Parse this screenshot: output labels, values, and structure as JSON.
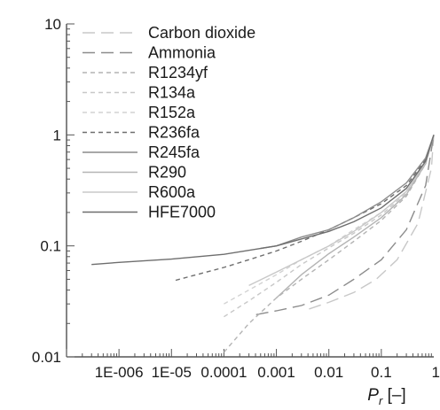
{
  "chart_data": {
    "type": "line",
    "title": "",
    "xlabel": "P",
    "xlabel_sub": "r",
    "xlabel_unit": " [–]",
    "ylabel": "",
    "xscale": "log",
    "yscale": "log",
    "xlim": [
      1e-07,
      1
    ],
    "ylim": [
      0.01,
      10
    ],
    "x_ticks": [
      {
        "value": 1e-06,
        "label": "1E-006"
      },
      {
        "value": 1e-05,
        "label": "1E-05"
      },
      {
        "value": 0.0001,
        "label": "0.0001"
      },
      {
        "value": 0.001,
        "label": "0.001"
      },
      {
        "value": 0.01,
        "label": "0.01"
      },
      {
        "value": 0.1,
        "label": "0.1"
      },
      {
        "value": 1,
        "label": "1"
      }
    ],
    "y_ticks": [
      {
        "value": 0.01,
        "label": "0.01"
      },
      {
        "value": 0.1,
        "label": "0.1"
      },
      {
        "value": 1,
        "label": "1"
      },
      {
        "value": 10,
        "label": "10"
      }
    ],
    "grid": false,
    "legend_position": "top-left",
    "series": [
      {
        "name": "Carbon dioxide",
        "color": "#c8c8c8",
        "dash": "14,7",
        "points": [
          [
            0.0042,
            0.027
          ],
          [
            0.01,
            0.031
          ],
          [
            0.03,
            0.038
          ],
          [
            0.08,
            0.05
          ],
          [
            0.2,
            0.075
          ],
          [
            0.5,
            0.16
          ],
          [
            0.9,
            0.5
          ],
          [
            1,
            1
          ]
        ]
      },
      {
        "name": "Ammonia",
        "color": "#8c8c8c",
        "dash": "14,7",
        "points": [
          [
            0.00041,
            0.024
          ],
          [
            0.001,
            0.026
          ],
          [
            0.003,
            0.029
          ],
          [
            0.01,
            0.036
          ],
          [
            0.03,
            0.05
          ],
          [
            0.1,
            0.075
          ],
          [
            0.3,
            0.14
          ],
          [
            0.7,
            0.35
          ],
          [
            1,
            1
          ]
        ]
      },
      {
        "name": "R1234yf",
        "color": "#b4b4b4",
        "dash": "5,4",
        "points": [
          [
            0.0001,
            0.011
          ],
          [
            0.0003,
            0.02
          ],
          [
            0.001,
            0.034
          ],
          [
            0.003,
            0.05
          ],
          [
            0.01,
            0.075
          ],
          [
            0.03,
            0.11
          ],
          [
            0.1,
            0.17
          ],
          [
            0.3,
            0.28
          ],
          [
            0.7,
            0.55
          ],
          [
            1,
            1
          ]
        ]
      },
      {
        "name": "R134a",
        "color": "#c8c8c8",
        "dash": "5,4",
        "points": [
          [
            0.0001,
            0.023
          ],
          [
            0.0003,
            0.032
          ],
          [
            0.001,
            0.047
          ],
          [
            0.003,
            0.068
          ],
          [
            0.01,
            0.096
          ],
          [
            0.03,
            0.13
          ],
          [
            0.1,
            0.19
          ],
          [
            0.3,
            0.3
          ],
          [
            0.7,
            0.55
          ],
          [
            1,
            1
          ]
        ]
      },
      {
        "name": "R152a",
        "color": "#d2d2d2",
        "dash": "5,4",
        "points": [
          [
            0.0001,
            0.03
          ],
          [
            0.0003,
            0.04
          ],
          [
            0.001,
            0.055
          ],
          [
            0.003,
            0.075
          ],
          [
            0.01,
            0.1
          ],
          [
            0.03,
            0.14
          ],
          [
            0.1,
            0.2
          ],
          [
            0.3,
            0.31
          ],
          [
            0.7,
            0.56
          ],
          [
            1,
            1
          ]
        ]
      },
      {
        "name": "R236fa",
        "color": "#6e6e6e",
        "dash": "5,4",
        "points": [
          [
            1.2e-05,
            0.049
          ],
          [
            3e-05,
            0.055
          ],
          [
            0.0001,
            0.064
          ],
          [
            0.0003,
            0.075
          ],
          [
            0.001,
            0.09
          ],
          [
            0.003,
            0.11
          ],
          [
            0.01,
            0.14
          ],
          [
            0.03,
            0.18
          ],
          [
            0.1,
            0.24
          ],
          [
            0.3,
            0.35
          ],
          [
            0.7,
            0.6
          ],
          [
            1,
            1
          ]
        ]
      },
      {
        "name": "R245fa",
        "color": "#8c8c8c",
        "dash": "none",
        "points": [
          [
            0.0005,
            0.095
          ],
          [
            0.001,
            0.1
          ],
          [
            0.003,
            0.12
          ],
          [
            0.01,
            0.14
          ],
          [
            0.03,
            0.18
          ],
          [
            0.1,
            0.25
          ],
          [
            0.3,
            0.37
          ],
          [
            0.7,
            0.62
          ],
          [
            1,
            1
          ]
        ]
      },
      {
        "name": "R290",
        "color": "#b4b4b4",
        "dash": "none",
        "points": [
          [
            0.001,
            0.034
          ],
          [
            0.003,
            0.055
          ],
          [
            0.01,
            0.085
          ],
          [
            0.03,
            0.12
          ],
          [
            0.1,
            0.18
          ],
          [
            0.3,
            0.29
          ],
          [
            0.7,
            0.55
          ],
          [
            1,
            1
          ]
        ]
      },
      {
        "name": "R600a",
        "color": "#c8c8c8",
        "dash": "none",
        "points": [
          [
            0.0003,
            0.044
          ],
          [
            0.001,
            0.058
          ],
          [
            0.003,
            0.075
          ],
          [
            0.01,
            0.1
          ],
          [
            0.03,
            0.135
          ],
          [
            0.1,
            0.2
          ],
          [
            0.3,
            0.31
          ],
          [
            0.7,
            0.57
          ],
          [
            1,
            1
          ]
        ]
      },
      {
        "name": "HFE7000",
        "color": "#6e6e6e",
        "dash": "none",
        "points": [
          [
            3e-07,
            0.068
          ],
          [
            1e-06,
            0.071
          ],
          [
            1e-05,
            0.076
          ],
          [
            0.0001,
            0.084
          ],
          [
            0.001,
            0.1
          ],
          [
            0.01,
            0.135
          ],
          [
            0.03,
            0.165
          ],
          [
            0.1,
            0.22
          ],
          [
            0.3,
            0.33
          ],
          [
            0.7,
            0.58
          ],
          [
            1,
            1
          ]
        ]
      }
    ]
  }
}
